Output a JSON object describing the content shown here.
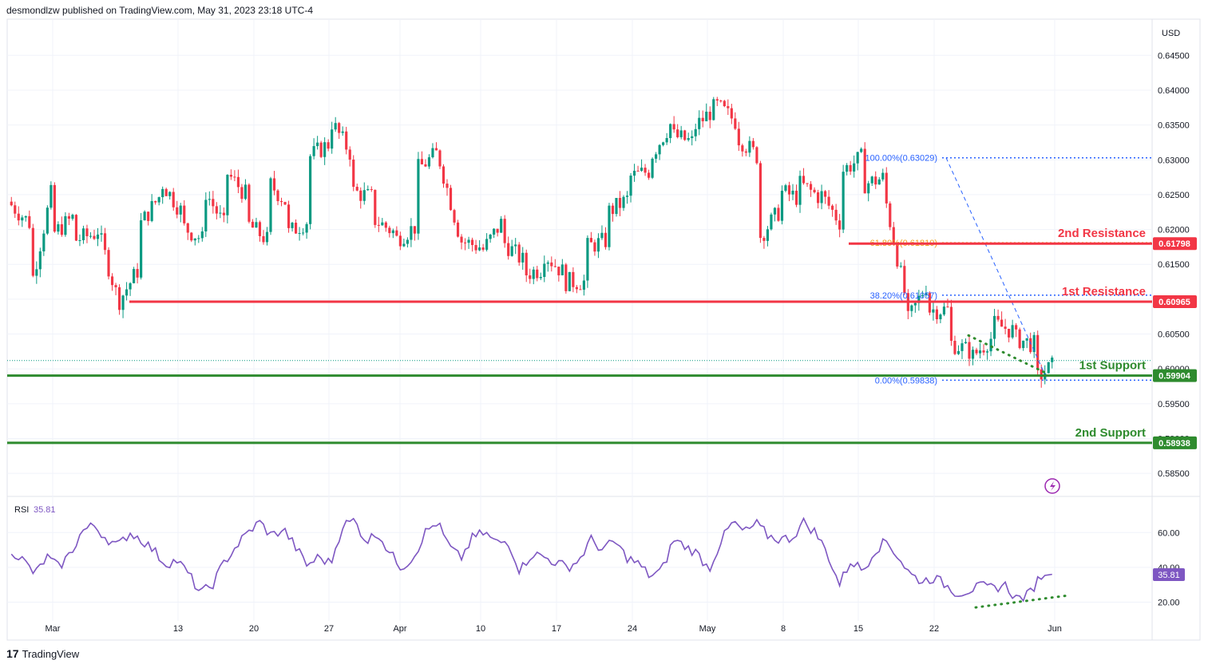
{
  "header": {
    "publisher": "desmondlzw published on TradingView.com, May 31, 2023 23:18 UTC-4"
  },
  "footer": {
    "logo": "17",
    "brand": "TradingView"
  },
  "colors": {
    "bull": "#089981",
    "bear": "#f23645",
    "resistance": "#f23645",
    "support": "#2e8b2e",
    "rsi": "#7e57c2",
    "fib": "#2962ff",
    "fib_gold": "#f0a11b",
    "grid": "#f0f3fa",
    "text": "#131722"
  },
  "chart_data": [
    {
      "type": "candlestick",
      "currency_label": "USD",
      "y_ticks": [
        "0.64500",
        "0.64000",
        "0.63500",
        "0.63000",
        "0.62500",
        "0.62000",
        "0.61500",
        "0.61000",
        "0.60500",
        "0.60000",
        "0.59500",
        "0.59000",
        "0.58500"
      ],
      "ylim": [
        0.5825,
        0.6495
      ],
      "x_ticks": [
        "Mar",
        "13",
        "20",
        "27",
        "Apr",
        "10",
        "17",
        "24",
        "May",
        "8",
        "15",
        "22",
        "Jun"
      ],
      "price_path": [
        [
          0.624,
          0.6235
        ],
        [
          0.6205,
          0.613
        ],
        [
          0.627,
          0.6195
        ],
        [
          0.622,
          0.6185
        ],
        [
          0.6195,
          0.6205
        ],
        [
          0.61,
          0.6095
        ],
        [
          0.6145,
          0.6205
        ],
        [
          0.625,
          0.627
        ],
        [
          0.6225,
          0.6205
        ],
        [
          0.6185,
          0.626
        ],
        [
          0.6205,
          0.6285
        ],
        [
          0.625,
          0.621
        ],
        [
          0.6185,
          0.627
        ],
        [
          0.6235,
          0.6195
        ],
        [
          0.6215,
          0.6305
        ],
        [
          0.6325,
          0.6355
        ],
        [
          0.6305,
          0.6255
        ],
        [
          0.6245,
          0.6215
        ],
        [
          0.6195,
          0.6185
        ],
        [
          0.6205,
          0.6285
        ],
        [
          0.631,
          0.631
        ],
        [
          0.6195,
          0.6185
        ],
        [
          0.6175,
          0.6165
        ],
        [
          0.621,
          0.6185
        ],
        [
          0.6155,
          0.6135
        ],
        [
          0.6145,
          0.6165
        ],
        [
          0.6135,
          0.6125
        ],
        [
          0.6125,
          0.6175
        ],
        [
          0.6185,
          0.6225
        ],
        [
          0.6245,
          0.6275
        ],
        [
          0.6285,
          0.6305
        ],
        [
          0.6355,
          0.6335
        ],
        [
          0.6325,
          0.6345
        ],
        [
          0.6375,
          0.638
        ],
        [
          0.6355,
          0.6335
        ],
        [
          0.6305,
          0.6185
        ],
        [
          0.6225,
          0.6255
        ],
        [
          0.6245,
          0.6265
        ],
        [
          0.6245,
          0.625
        ],
        [
          0.6205,
          0.6285
        ],
        [
          0.6305,
          0.6265
        ],
        [
          0.6275,
          0.6245
        ],
        [
          0.6095,
          0.6065
        ],
        [
          0.6125,
          0.6085
        ],
        [
          0.6085,
          0.6038
        ],
        [
          0.6025,
          0.6015
        ],
        [
          0.6045,
          0.6065
        ],
        [
          0.6055,
          0.6045
        ],
        [
          0.6035,
          0.5984
        ],
        [
          0.6008,
          0.601
        ]
      ],
      "dashed_line_from_100": true,
      "fib_levels": [
        {
          "label": "100.00%(0.63029)",
          "value": 0.63029
        },
        {
          "label": "61.80%(0.61810)",
          "value": 0.6181
        },
        {
          "label": "38.20%(0.61057)",
          "value": 0.61057
        },
        {
          "label": "0.00%(0.59838)",
          "value": 0.59838
        }
      ],
      "levels": [
        {
          "label": "2nd Resistance",
          "value": 0.61798,
          "tag": "0.61798",
          "kind": "resistance"
        },
        {
          "label": "1st Resistance",
          "value": 0.60965,
          "tag": "0.60965",
          "kind": "resistance"
        },
        {
          "label": "1st Support",
          "value": 0.59904,
          "tag": "0.59904",
          "kind": "support"
        },
        {
          "label": "2nd Support",
          "value": 0.58938,
          "tag": "0.58938",
          "kind": "support"
        }
      ]
    },
    {
      "type": "line",
      "name": "RSI",
      "last_value": "35.81",
      "y_ticks": [
        "60.00",
        "40.00",
        "20.00"
      ],
      "ylim": [
        12,
        78
      ],
      "values": [
        50,
        44,
        36,
        46,
        40,
        48,
        61,
        64,
        57,
        52,
        60,
        56,
        50,
        42,
        44,
        36,
        25,
        30,
        43,
        52,
        60,
        66,
        58,
        62,
        52,
        41,
        46,
        42,
        64,
        67,
        55,
        60,
        48,
        40,
        46,
        60,
        66,
        52,
        45,
        57,
        60,
        54,
        55,
        38,
        48,
        46,
        43,
        40,
        44,
        56,
        50,
        55,
        46,
        42,
        35,
        38,
        56,
        52,
        48,
        39,
        55,
        66,
        60,
        65,
        58,
        56,
        57,
        66,
        60,
        48,
        30,
        44,
        38,
        50,
        55,
        46,
        36,
        32,
        34,
        30,
        25,
        27,
        29,
        28,
        30,
        22,
        24,
        35,
        36
      ],
      "divergence": true
    }
  ]
}
